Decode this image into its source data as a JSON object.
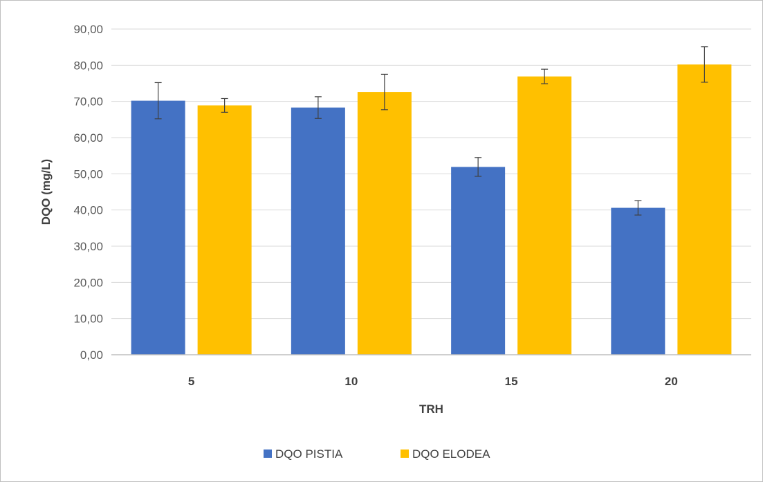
{
  "chart_data": {
    "type": "bar",
    "title": "",
    "xlabel": "TRH",
    "ylabel": "DQO (mg/L)",
    "categories": [
      "5",
      "10",
      "15",
      "20"
    ],
    "ylim": [
      0,
      90
    ],
    "yticks": [
      0,
      10,
      20,
      30,
      40,
      50,
      60,
      70,
      80,
      90
    ],
    "ytick_labels": [
      "0,00",
      "10,00",
      "20,00",
      "30,00",
      "40,00",
      "50,00",
      "60,00",
      "70,00",
      "80,00",
      "90,00"
    ],
    "grid": true,
    "legend_position": "bottom",
    "series": [
      {
        "name": "DQO PISTIA",
        "color": "#4472C4",
        "values": [
          70.2,
          68.3,
          51.9,
          40.6
        ],
        "errors": [
          5.0,
          3.0,
          2.6,
          2.0
        ]
      },
      {
        "name": "DQO ELODEA",
        "color": "#FFC000",
        "values": [
          68.9,
          72.6,
          76.9,
          80.2
        ],
        "errors": [
          1.9,
          4.9,
          2.0,
          4.9
        ]
      }
    ]
  }
}
